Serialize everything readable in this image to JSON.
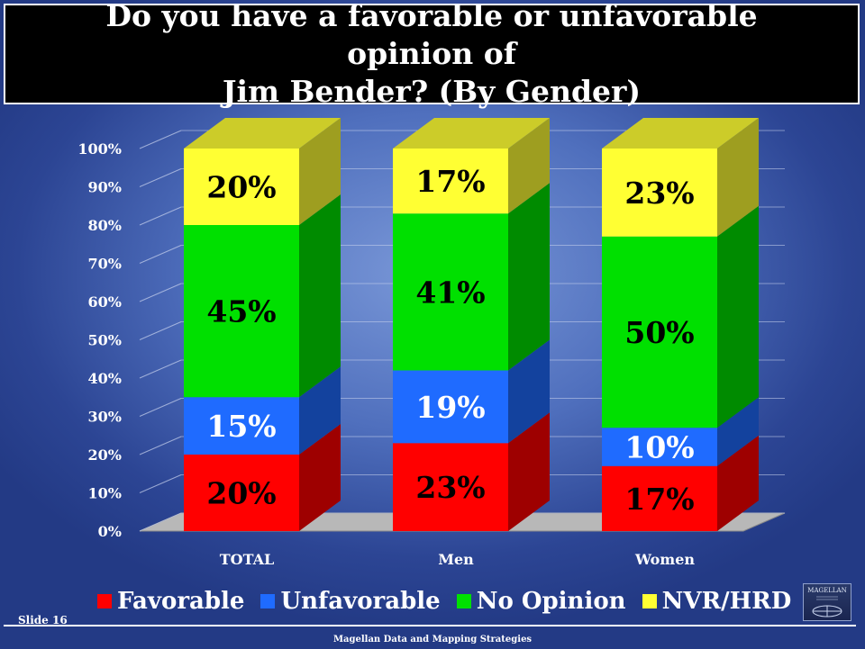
{
  "title": "Do you have a favorable or unfavorable opinion of\nJim Bender? (By Gender)",
  "slide_label": "Slide 16",
  "footer": "Magellan Data and Mapping Strategies",
  "logo_text": "MAGELLAN",
  "colors": {
    "favorable": "#ff0000",
    "unfavorable": "#1f6bff",
    "no_opinion": "#00e000",
    "nvr_hrd": "#ffff33"
  },
  "chart_data": {
    "type": "bar",
    "stacked": true,
    "three_d": true,
    "categories": [
      "TOTAL",
      "Men",
      "Women"
    ],
    "series": [
      {
        "name": "Favorable",
        "values": [
          20,
          23,
          17
        ],
        "labels": [
          "20%",
          "23%",
          "17%"
        ],
        "color": "#ff0000",
        "label_color": "#000000"
      },
      {
        "name": "Unfavorable",
        "values": [
          15,
          19,
          10
        ],
        "labels": [
          "15%",
          "19%",
          "10%"
        ],
        "color": "#1f6bff",
        "label_color": "#ffffff"
      },
      {
        "name": "No Opinion",
        "values": [
          45,
          41,
          50
        ],
        "labels": [
          "45%",
          "41%",
          "50%"
        ],
        "color": "#00e000",
        "label_color": "#000000"
      },
      {
        "name": "NVR/HRD",
        "values": [
          20,
          17,
          23
        ],
        "labels": [
          "20%",
          "17%",
          "23%"
        ],
        "color": "#ffff33",
        "label_color": "#000000"
      }
    ],
    "y_ticks": [
      "0%",
      "10%",
      "20%",
      "30%",
      "40%",
      "50%",
      "60%",
      "70%",
      "80%",
      "90%",
      "100%"
    ],
    "ylim": [
      0,
      100
    ],
    "grid": true,
    "legend_position": "bottom"
  }
}
